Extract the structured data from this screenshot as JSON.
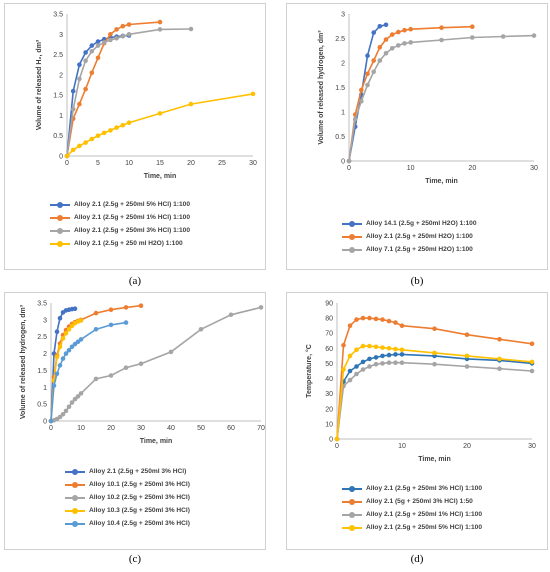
{
  "charts": [
    {
      "caption": "(a)",
      "chart_data": {
        "type": "line",
        "xlabel": "Time, min",
        "ylabel": "Volume of released H₂, dm³",
        "xlim": [
          0,
          30
        ],
        "ylim": [
          0,
          3.5
        ],
        "xticks": [
          0,
          5,
          10,
          15,
          20,
          25,
          30
        ],
        "yticks": [
          0,
          0.5,
          1,
          1.5,
          2,
          2.5,
          3,
          3.5
        ],
        "grid": false,
        "legend_position": "bottom",
        "series": [
          {
            "name": "Alloy 2.1 (2.5g + 250ml 5% HCl) 1:100",
            "color": "#4472c4",
            "x": [
              0,
              1,
              2,
              3,
              4,
              5,
              6,
              7,
              8,
              9,
              10
            ],
            "y": [
              0,
              1.6,
              2.25,
              2.55,
              2.72,
              2.82,
              2.88,
              2.92,
              2.94,
              2.96,
              2.97
            ]
          },
          {
            "name": "Alloy 2.1 (2.5g + 250ml 1% HCl) 1:100",
            "color": "#ed7d31",
            "x": [
              0,
              1,
              2,
              3,
              4,
              5,
              6,
              7,
              8,
              9,
              10,
              15
            ],
            "y": [
              0,
              0.92,
              1.28,
              1.65,
              2.05,
              2.42,
              2.78,
              3.0,
              3.12,
              3.2,
              3.24,
              3.3
            ]
          },
          {
            "name": "Alloy 2.1 (2.5g + 250ml 3% HCl) 1:100",
            "color": "#a5a5a5",
            "x": [
              0,
              1,
              2,
              3,
              4,
              5,
              6,
              7,
              8,
              9,
              10,
              15,
              20
            ],
            "y": [
              0,
              1.15,
              1.9,
              2.35,
              2.58,
              2.72,
              2.8,
              2.86,
              2.9,
              2.95,
              3.0,
              3.12,
              3.13
            ]
          },
          {
            "name": "Alloy 2.1 (2.5g + 250 ml H2O) 1:100",
            "color": "#ffc000",
            "x": [
              0,
              1,
              2,
              3,
              4,
              5,
              6,
              7,
              8,
              9,
              10,
              15,
              20,
              30
            ],
            "y": [
              0,
              0.15,
              0.25,
              0.33,
              0.42,
              0.5,
              0.57,
              0.63,
              0.7,
              0.76,
              0.82,
              1.05,
              1.28,
              1.53
            ]
          }
        ]
      }
    },
    {
      "caption": "(b)",
      "chart_data": {
        "type": "line",
        "xlabel": "Time, min",
        "ylabel": "Volume of released hydrogen, dm³",
        "xlim": [
          0,
          30
        ],
        "ylim": [
          0,
          3
        ],
        "xticks": [
          0,
          10,
          20,
          30
        ],
        "yticks": [
          0,
          0.5,
          1,
          1.5,
          2,
          2.5,
          3
        ],
        "grid": false,
        "legend_position": "bottom",
        "series": [
          {
            "name": "Alloy 14.1 (2.5g + 250ml H2O) 1:100",
            "color": "#4472c4",
            "x": [
              0,
              1,
              2,
              3,
              4,
              5,
              6
            ],
            "y": [
              0,
              0.7,
              1.35,
              2.15,
              2.62,
              2.75,
              2.78
            ]
          },
          {
            "name": "Alloy 2.1 (2.5g + 250ml H2O) 1:100",
            "color": "#ed7d31",
            "x": [
              0,
              1,
              2,
              3,
              4,
              5,
              6,
              7,
              8,
              9,
              10,
              15,
              20
            ],
            "y": [
              0,
              0.95,
              1.45,
              1.78,
              2.05,
              2.32,
              2.48,
              2.58,
              2.63,
              2.67,
              2.69,
              2.72,
              2.74
            ]
          },
          {
            "name": "Alloy 7.1 (2.5g + 250ml H2O) 1:100",
            "color": "#a5a5a5",
            "x": [
              0,
              1,
              2,
              3,
              4,
              5,
              6,
              7,
              8,
              9,
              10,
              15,
              20,
              25,
              30
            ],
            "y": [
              0,
              0.85,
              1.22,
              1.55,
              1.82,
              2.05,
              2.2,
              2.3,
              2.36,
              2.4,
              2.42,
              2.47,
              2.52,
              2.54,
              2.56
            ]
          }
        ]
      }
    },
    {
      "caption": "(c)",
      "chart_data": {
        "type": "line",
        "xlabel": "Time, min",
        "ylabel": "Volume of released hydrogen, dm³",
        "xlim": [
          0,
          70
        ],
        "ylim": [
          0,
          3.5
        ],
        "xticks": [
          0,
          10,
          20,
          30,
          40,
          50,
          60,
          70
        ],
        "yticks": [
          0,
          0.5,
          1,
          1.5,
          2,
          2.5,
          3,
          3.5
        ],
        "grid": false,
        "legend_position": "bottom",
        "series": [
          {
            "name": "Alloy 2.1 (2.5g + 250ml 3% HCl)",
            "color": "#4472c4",
            "x": [
              0,
              1,
              2,
              3,
              4,
              5,
              6,
              7,
              8
            ],
            "y": [
              0,
              2.0,
              2.65,
              3.05,
              3.22,
              3.28,
              3.3,
              3.32,
              3.33
            ]
          },
          {
            "name": "Alloy 10.1 (2.5g + 250ml 3% HCl)",
            "color": "#ed7d31",
            "x": [
              0,
              1,
              2,
              3,
              4,
              5,
              6,
              7,
              8,
              9,
              10,
              15,
              20,
              25,
              30
            ],
            "y": [
              0,
              1.3,
              1.95,
              2.3,
              2.55,
              2.7,
              2.8,
              2.88,
              2.93,
              2.97,
              3.0,
              3.2,
              3.3,
              3.37,
              3.42
            ]
          },
          {
            "name": "Alloy 10.2 (2.5g + 250ml 3% HCl)",
            "color": "#a5a5a5",
            "x": [
              0,
              1,
              2,
              3,
              4,
              5,
              6,
              7,
              8,
              9,
              10,
              15,
              20,
              25,
              30,
              40,
              50,
              60,
              70
            ],
            "y": [
              0,
              0.02,
              0.06,
              0.12,
              0.2,
              0.3,
              0.42,
              0.55,
              0.65,
              0.73,
              0.82,
              1.25,
              1.35,
              1.58,
              1.7,
              2.05,
              2.72,
              3.15,
              3.37
            ]
          },
          {
            "name": "Alloy 10.3 (2.5g + 250ml 3% HCl)",
            "color": "#ffc000",
            "x": [
              0,
              1,
              2,
              3,
              4,
              5,
              6,
              7,
              8,
              9,
              10
            ],
            "y": [
              0,
              1.2,
              1.9,
              2.2,
              2.45,
              2.6,
              2.72,
              2.82,
              2.9,
              2.95,
              2.98
            ]
          },
          {
            "name": "Alloy 10.4 (2.5g + 250ml 3% HCl)",
            "color": "#5b9bd5",
            "x": [
              0,
              1,
              2,
              3,
              4,
              5,
              6,
              7,
              8,
              9,
              10,
              15,
              20,
              25
            ],
            "y": [
              0,
              1.05,
              1.4,
              1.65,
              1.85,
              2.0,
              2.1,
              2.2,
              2.28,
              2.35,
              2.42,
              2.72,
              2.85,
              2.92
            ]
          }
        ]
      }
    },
    {
      "caption": "(d)",
      "chart_data": {
        "type": "line",
        "xlabel": "Time, min",
        "ylabel": "Temperature, °C",
        "xlim": [
          0,
          30
        ],
        "ylim": [
          0,
          90
        ],
        "xticks": [
          0,
          10,
          20,
          30
        ],
        "yticks": [
          0,
          10,
          20,
          30,
          40,
          50,
          60,
          70,
          80,
          90
        ],
        "grid": false,
        "legend_position": "bottom",
        "series": [
          {
            "name": "Alloy 2.1 (2.5g + 250ml 3% HCl) 1:100",
            "color": "#2e75b6",
            "x": [
              0,
              1,
              2,
              3,
              4,
              5,
              6,
              7,
              8,
              9,
              10,
              15,
              20,
              25,
              30
            ],
            "y": [
              0,
              38,
              45,
              48,
              51,
              53,
              54,
              55,
              55.5,
              56,
              56,
              55,
              53,
              52,
              50
            ]
          },
          {
            "name": "Alloy 2.1 (5g + 250ml 3% HCl) 1:50",
            "color": "#ed7d31",
            "x": [
              0,
              1,
              2,
              3,
              4,
              5,
              6,
              7,
              8,
              9,
              10,
              15,
              20,
              25,
              30
            ],
            "y": [
              0,
              62,
              75,
              79,
              80,
              80,
              79.5,
              79,
              78,
              77,
              75,
              73,
              69,
              66,
              63
            ]
          },
          {
            "name": "Alloy 2.1 (2.5g + 250ml 1% HCl) 1:100",
            "color": "#a5a5a5",
            "x": [
              0,
              1,
              2,
              3,
              4,
              5,
              6,
              7,
              8,
              9,
              10,
              15,
              20,
              25,
              30
            ],
            "y": [
              0,
              35,
              39,
              43,
              46,
              48,
              49.5,
              50,
              50.5,
              50.5,
              50.5,
              49.5,
              48,
              46.5,
              45
            ]
          },
          {
            "name": "Alloy 2.1 (2.5g + 250ml 5% HCl) 1:100",
            "color": "#ffc000",
            "x": [
              0,
              1,
              2,
              3,
              4,
              5,
              6,
              7,
              8,
              9,
              10,
              15,
              20,
              25,
              30
            ],
            "y": [
              0,
              46,
              55,
              59,
              61.5,
              61.5,
              61,
              60.5,
              60,
              59.5,
              59,
              57,
              55,
              53,
              51
            ]
          }
        ]
      }
    }
  ]
}
